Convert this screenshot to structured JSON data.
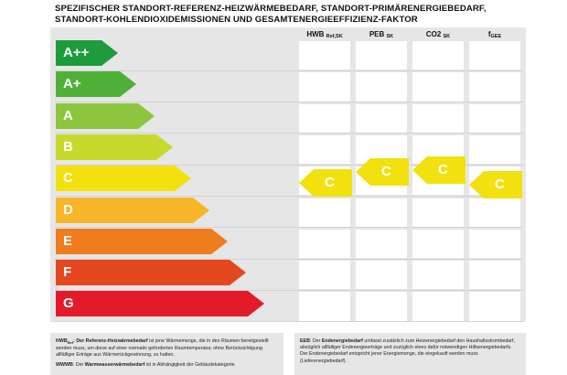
{
  "title_lines": [
    "SPEZIFISCHER STANDORT-REFERENZ-HEIZWÄRMEBEDARF, STANDORT-PRIMÄRENERGIEBEDARF,",
    "STANDORT-KOHLENDIOXIDEMISSIONEN UND GESAMTENERGIEEFFIZIENZ-FAKTOR"
  ],
  "columns": [
    {
      "main": "HWB",
      "sub": "Ref,SK"
    },
    {
      "main": "PEB",
      "sub": "SK"
    },
    {
      "main": "CO2",
      "sub": "SK"
    },
    {
      "main": "f",
      "sub": "GEE"
    }
  ],
  "classes": [
    {
      "label": "A++",
      "color": "#1e9b3c"
    },
    {
      "label": "A+",
      "color": "#4fb038"
    },
    {
      "label": "A",
      "color": "#8cc63e"
    },
    {
      "label": "B",
      "color": "#c7d92c"
    },
    {
      "label": "C",
      "color": "#f2e10f"
    },
    {
      "label": "D",
      "color": "#f7b529"
    },
    {
      "label": "E",
      "color": "#ef7d1e"
    },
    {
      "label": "F",
      "color": "#e4481f"
    },
    {
      "label": "G",
      "color": "#e31a2a"
    }
  ],
  "ratings": [
    {
      "column": "HWB",
      "value": "C",
      "color": "#f2e10f"
    },
    {
      "column": "PEB",
      "value": "C",
      "color": "#f2e10f"
    },
    {
      "column": "CO2",
      "value": "C",
      "color": "#f2e10f"
    },
    {
      "column": "f",
      "value": "C",
      "color": "#f2e10f"
    }
  ],
  "footnotes": {
    "hwb_term": "HWB",
    "hwb_sub": "Ref",
    "hwb_colon": ":",
    "hwb_bold": "Der Referenz-Heizwärmebedarf",
    "hwb_text": " ist jene Wärmemenge, die in den Räumen bereitgestellt werden muss, um diese auf einer normativ geforderten Raumtemperatur, ohne Berücksichtigung allfälliger Erträge aus Wärmerückgewinnung, zu halten.",
    "wwwb_term": "WWWB",
    "wwwb_colon": ": Der ",
    "wwwb_bold": "Warmwasserwärmebedarf",
    "wwwb_text": " ist in Abhängigkeit der Gebäudekategorie",
    "eeb_term": "EEB",
    "eeb_colon": ": Der ",
    "eeb_bold": "Endenergiebedarf",
    "eeb_text": " umfasst zusätzlich zum Heizenergiebedarf den Haushaltsstrombedarf, abzüglich allfälliger Endenergieerträge und zuzüglich eines dafür notwendigen Hilfsenergiebedarfs. Der Endenergiebedarf entspricht jener Energiemenge, die eingekauft werden muss (Lieferenergiebedarf)."
  }
}
